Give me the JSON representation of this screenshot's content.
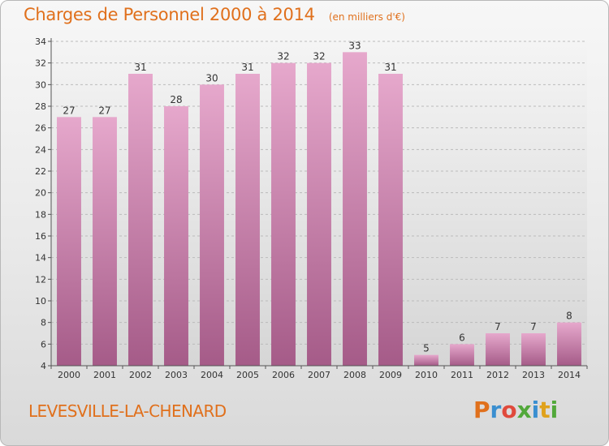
{
  "title": "Charges de Personnel 2000 à 2014",
  "unit_label": "(en milliers d'€)",
  "commune": "LEVESVILLE-LA-CHENARD",
  "brand": {
    "letters": [
      "P",
      "r",
      "o",
      "x",
      "i",
      "t",
      "i"
    ],
    "colors": [
      "#e0701c",
      "#3a8fd0",
      "#e04a3c",
      "#52a83a",
      "#3a8fd0",
      "#e0a21c",
      "#52a83a"
    ]
  },
  "colors": {
    "title": "#e0701c",
    "bar_top": "#e6a8cc",
    "bar_bottom": "#a55b88",
    "axis": "#555555",
    "grid": "#bbbbbb",
    "value_label": "#333333"
  },
  "chart_data": {
    "type": "bar",
    "title": "Charges de Personnel 2000 à 2014",
    "subtitle": "(en milliers d'€)",
    "xlabel": "",
    "ylabel": "",
    "categories": [
      "2000",
      "2001",
      "2002",
      "2003",
      "2004",
      "2005",
      "2006",
      "2007",
      "2008",
      "2009",
      "2010",
      "2011",
      "2012",
      "2013",
      "2014"
    ],
    "values": [
      27,
      27,
      31,
      28,
      30,
      31,
      32,
      32,
      33,
      31,
      5,
      6,
      7,
      7,
      8
    ],
    "ylim": [
      4,
      34
    ],
    "yticks": [
      4,
      6,
      8,
      10,
      12,
      14,
      16,
      18,
      20,
      22,
      24,
      26,
      28,
      30,
      32,
      34
    ],
    "grid": true,
    "legend": "none"
  }
}
